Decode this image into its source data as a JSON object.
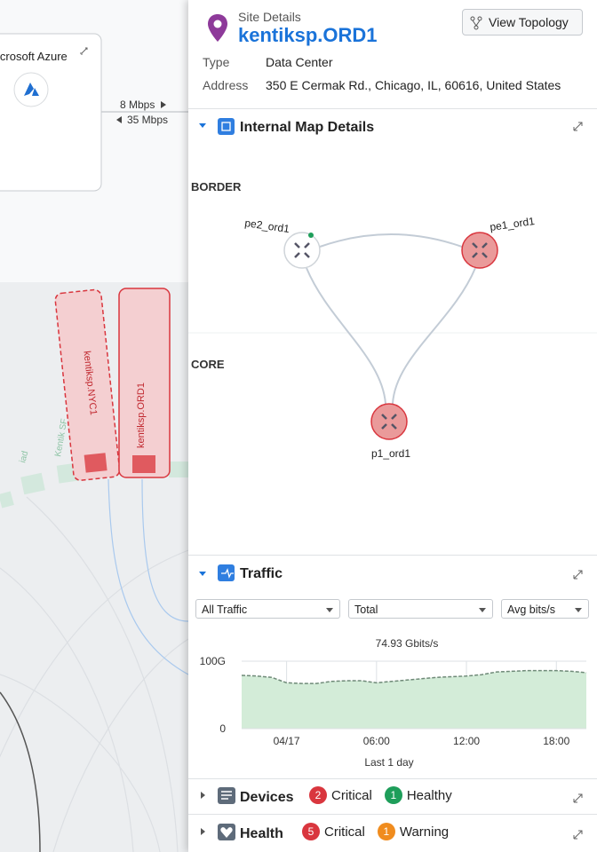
{
  "map": {
    "cloud_card": "icrosoft Azure",
    "rate_out": "8 Mbps",
    "rate_in": "35 Mbps",
    "sites": [
      "kentiksp.NYC1",
      "kentiksp.ORD1",
      "Kentik SF",
      "iad"
    ]
  },
  "panel": {
    "header": {
      "kicker": "Site Details",
      "title": "kentiksp.ORD1",
      "button": "View Topology"
    },
    "details": [
      {
        "label": "Type",
        "value": "Data Center"
      },
      {
        "label": "Address",
        "value": "350 E Cermak Rd., Chicago, IL, 60616, United States"
      }
    ],
    "internal_map": {
      "title": "Internal Map Details",
      "layers": [
        "BORDER",
        "CORE"
      ],
      "nodes": [
        {
          "label": "pe2_ord1"
        },
        {
          "label": "pe1_ord1"
        },
        {
          "label": "p1_ord1"
        }
      ]
    },
    "traffic": {
      "title": "Traffic",
      "filters": [
        "All Traffic",
        "Total",
        "Avg bits/s"
      ],
      "chart": {
        "type": "area",
        "title": "74.93 Gbits/s",
        "x": [
          -3,
          -2,
          -1,
          0,
          1,
          2,
          3,
          4,
          5,
          6,
          7,
          8,
          9,
          10,
          11,
          12,
          13,
          14,
          15,
          16,
          17,
          18,
          19,
          20
        ],
        "values": [
          79,
          78,
          76,
          68,
          67,
          67,
          70,
          71,
          71,
          68,
          70,
          72,
          74,
          76,
          77,
          78,
          80,
          84,
          85,
          86,
          86,
          86,
          85,
          83
        ],
        "color": "#d3ecd8",
        "line_color": "#6f8a78",
        "xlim": [
          -3,
          20
        ],
        "ylim": [
          0,
          100
        ],
        "yticks": [
          0,
          {
            "value": 100,
            "label": "100G"
          }
        ],
        "xticks": [
          {
            "value": 0,
            "label": "04/17"
          },
          {
            "value": 6,
            "label": "06:00"
          },
          {
            "value": 12,
            "label": "12:00"
          },
          {
            "value": 18,
            "label": "18:00"
          }
        ],
        "xlabel": "Last 1 day",
        "grid": true
      }
    },
    "devices": {
      "title": "Devices",
      "badges": [
        {
          "count": 2,
          "label": "Critical"
        },
        {
          "count": 1,
          "label": "Healthy"
        }
      ]
    },
    "health": {
      "title": "Health",
      "badges": [
        {
          "count": 5,
          "label": "Critical"
        },
        {
          "count": 1,
          "label": "Warning"
        }
      ]
    }
  }
}
